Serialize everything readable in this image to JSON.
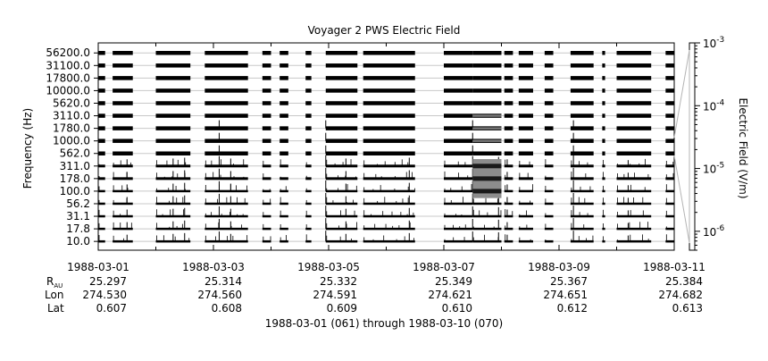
{
  "chart_data": {
    "type": "heatmap",
    "title": "Voyager 2 PWS Electric Field",
    "ylabel": "Frequency (Hz)",
    "colorbar_label": "Electric Field (V/m)",
    "footer": "1988-03-01 (061) through 1988-03-10 (070)",
    "channels": [
      "56200.0",
      "31100.0",
      "17800.0",
      "10000.0",
      "5620.0",
      "3110.0",
      "1780.0",
      "1000.0",
      "562.0",
      "311.0",
      "178.0",
      "100.0",
      "56.2",
      "31.1",
      "17.8",
      "10.0"
    ],
    "x_ticks": [
      {
        "date": "1988-03-01",
        "day": 0,
        "r_au": "25.297",
        "lon": "274.530",
        "lat": "0.607"
      },
      {
        "date": "1988-03-03",
        "day": 2,
        "r_au": "25.314",
        "lon": "274.560",
        "lat": "0.608"
      },
      {
        "date": "1988-03-05",
        "day": 4,
        "r_au": "25.332",
        "lon": "274.591",
        "lat": "0.609"
      },
      {
        "date": "1988-03-07",
        "day": 6,
        "r_au": "25.349",
        "lon": "274.621",
        "lat": "0.610"
      },
      {
        "date": "1988-03-09",
        "day": 8,
        "r_au": "25.367",
        "lon": "274.651",
        "lat": "0.612"
      },
      {
        "date": "1988-03-11",
        "day": 10,
        "r_au": "25.384",
        "lon": "274.682",
        "lat": "0.613"
      }
    ],
    "row_labels": {
      "r": "R",
      "r_sub": "AU",
      "lon": "Lon",
      "lat": "Lat"
    },
    "xlim": [
      "1988-03-01",
      "1988-03-11"
    ],
    "colorbar": {
      "scale": "log",
      "range": [
        5e-07,
        0.001
      ],
      "ticks": [
        {
          "base": "10",
          "exp": "-3",
          "value": 0.001
        },
        {
          "base": "10",
          "exp": "-4",
          "value": 0.0001
        },
        {
          "base": "10",
          "exp": "-5",
          "value": 1e-05
        },
        {
          "base": "10",
          "exp": "-6",
          "value": 1e-06
        }
      ]
    },
    "data_segments_days": [
      [
        0.0,
        0.12
      ],
      [
        0.25,
        0.6
      ],
      [
        1.0,
        1.6
      ],
      [
        1.85,
        2.6
      ],
      [
        2.85,
        3.0
      ],
      [
        3.15,
        3.3
      ],
      [
        3.6,
        3.7
      ],
      [
        3.95,
        4.5
      ],
      [
        4.6,
        5.5
      ],
      [
        6.0,
        6.5
      ],
      [
        6.5,
        7.0
      ],
      [
        7.05,
        7.2
      ],
      [
        7.3,
        7.55
      ],
      [
        7.75,
        7.9
      ],
      [
        8.2,
        8.6
      ],
      [
        8.75,
        8.8
      ],
      [
        9.0,
        9.6
      ],
      [
        9.85,
        10.0
      ]
    ],
    "activity_events_days": [
      {
        "day": 0.5,
        "level": 0.5
      },
      {
        "day": 1.3,
        "level": 0.6
      },
      {
        "day": 1.5,
        "level": 0.7
      },
      {
        "day": 2.1,
        "level": 0.9
      },
      {
        "day": 2.3,
        "level": 0.6
      },
      {
        "day": 3.95,
        "level": 1.0
      },
      {
        "day": 4.3,
        "level": 0.6
      },
      {
        "day": 5.4,
        "level": 0.7
      },
      {
        "day": 6.5,
        "level": 0.9
      },
      {
        "day": 6.95,
        "level": 0.8
      },
      {
        "day": 7.1,
        "level": 0.5
      },
      {
        "day": 8.25,
        "level": 1.0
      },
      {
        "day": 9.2,
        "level": 0.4
      }
    ],
    "strong_emission": {
      "day_start": 6.5,
      "day_end": 7.0,
      "channels": [
        "311.0",
        "178.0",
        "100.0"
      ]
    }
  }
}
